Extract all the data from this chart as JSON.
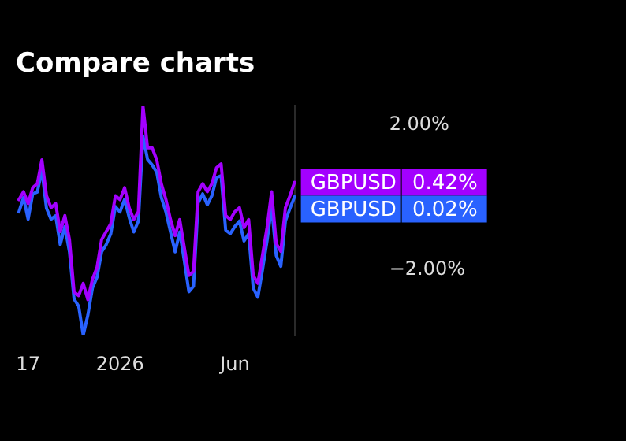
{
  "chart_data": {
    "type": "line",
    "title": "Compare charts",
    "categories": [
      null,
      null,
      "17",
      null,
      null,
      null,
      null,
      null,
      null,
      null,
      null,
      null,
      null,
      null,
      null,
      null,
      null,
      null,
      null,
      null,
      null,
      null,
      "2026",
      null,
      null,
      null,
      null,
      null,
      null,
      null,
      null,
      null,
      null,
      null,
      null,
      null,
      null,
      null,
      null,
      null,
      null,
      null,
      null,
      null,
      null,
      null,
      null,
      "Jun",
      null,
      null,
      null,
      null,
      null,
      null,
      null,
      null,
      null,
      null,
      null,
      null,
      null
    ],
    "series": [
      {
        "name": "GBPUSD",
        "color": "#a300ff",
        "values": [
          -0.06,
          0.16,
          -0.17,
          0.27,
          0.38,
          1.04,
          0.05,
          -0.28,
          -0.17,
          -0.94,
          -0.5,
          -1.16,
          -2.6,
          -2.71,
          -2.37,
          -2.82,
          -2.26,
          -1.93,
          -1.16,
          -0.94,
          -0.72,
          0.05,
          -0.06,
          0.27,
          -0.28,
          -0.61,
          -0.39,
          2.53,
          1.37,
          1.37,
          1.04,
          0.38,
          -0.06,
          -0.61,
          -1.05,
          -0.61,
          -1.38,
          -2.15,
          -2.04,
          0.16,
          0.38,
          0.16,
          0.38,
          0.82,
          0.93,
          -0.5,
          -0.61,
          -0.39,
          -0.28,
          -0.83,
          -0.61,
          -2.15,
          -2.37,
          -1.6,
          -0.83,
          0.16,
          -1.27,
          -1.49,
          -0.28,
          0.05,
          0.42
        ]
      },
      {
        "name": "GBPUSD",
        "color": "#2962ff",
        "values": [
          -0.4,
          0,
          -0.6,
          0.1,
          0.15,
          0.75,
          -0.3,
          -0.6,
          -0.5,
          -1.3,
          -0.8,
          -1.5,
          -2.8,
          -3,
          -3.8,
          -3.25,
          -2.5,
          -2.2,
          -1.5,
          -1.3,
          -1,
          -0.25,
          -0.4,
          -0.05,
          -0.55,
          -0.95,
          -0.65,
          1.7,
          1.05,
          0.9,
          0.7,
          0,
          -0.4,
          -0.95,
          -1.5,
          -0.95,
          -1.75,
          -2.6,
          -2.45,
          -0.15,
          0.1,
          -0.2,
          0.05,
          0.55,
          0.6,
          -0.9,
          -1,
          -0.8,
          -0.65,
          -1.2,
          -1,
          -2.5,
          -2.75,
          -2,
          -1.2,
          -0.25,
          -1.6,
          -1.9,
          -0.65,
          -0.3,
          0.02
        ]
      }
    ],
    "annotations": [
      "0.42%",
      "0.02%"
    ],
    "legend": "right",
    "ylim": [
      -3.8,
      2.53
    ],
    "yticks": [
      {
        "value": 2,
        "label": "2.00%"
      },
      {
        "value": -2,
        "label": "−2.00%"
      }
    ],
    "grid": false,
    "marker": "none",
    "line_style": "solid"
  }
}
